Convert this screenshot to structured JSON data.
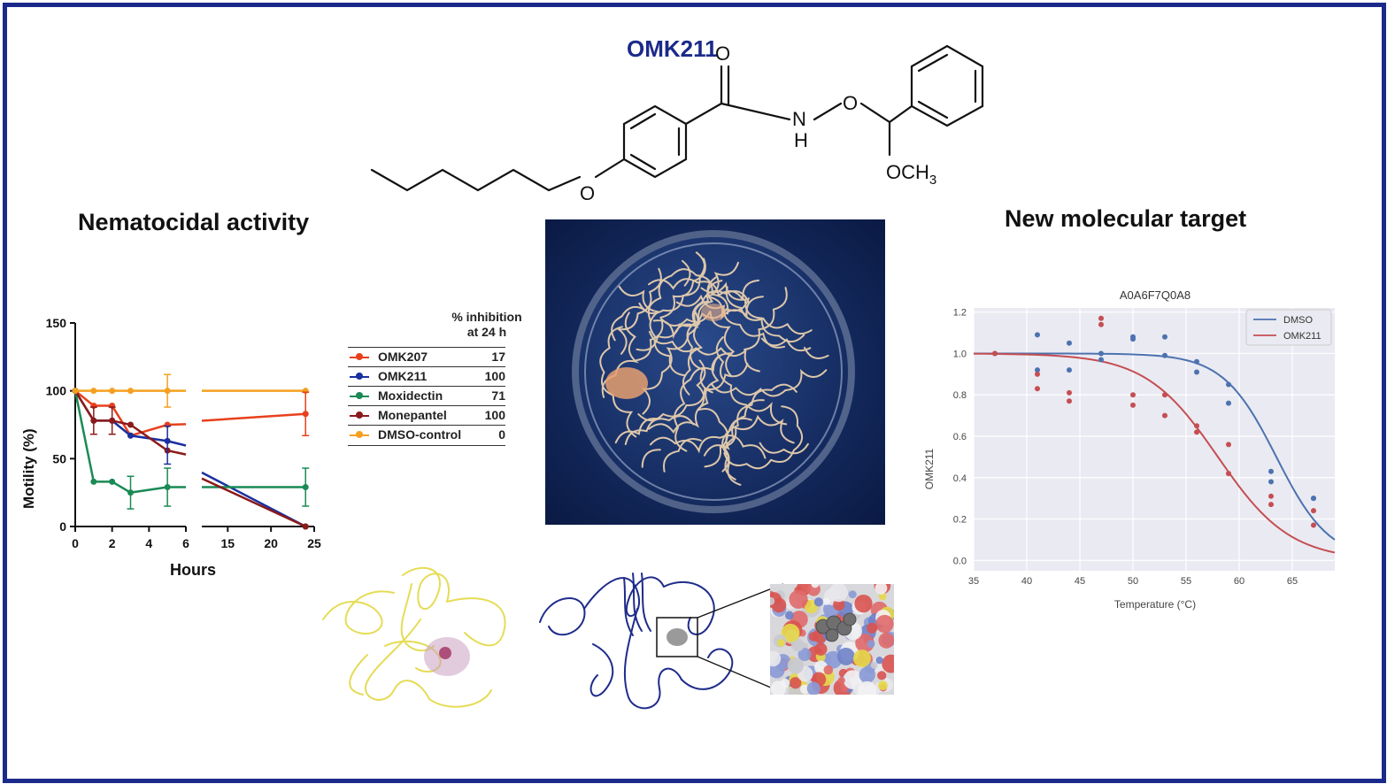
{
  "compound": {
    "name": "OMK211"
  },
  "structure": {
    "atoms": {
      "o_carbonyl": "O",
      "n": "N",
      "h": "H",
      "o_ether1": "O",
      "o_ether2": "O",
      "och3": "OCH3"
    }
  },
  "section_titles": {
    "left": "Nematocidal activity",
    "right": "New molecular target"
  },
  "motility_chart": {
    "ylabel": "Motility (%)",
    "xlabel": "Hours",
    "y_ticks": [
      "0",
      "50",
      "100",
      "150"
    ],
    "x_ticks_left": [
      "0",
      "2",
      "4",
      "6"
    ],
    "x_ticks_right": [
      "15",
      "20",
      "25"
    ]
  },
  "inhibition_table": {
    "header_line1": "% inhibition",
    "header_line2": "at 24 h",
    "rows": [
      {
        "name": "OMK207",
        "value": "17",
        "color": "#e8401c"
      },
      {
        "name": "OMK211",
        "value": "100",
        "color": "#1a2fa0"
      },
      {
        "name": "Moxidectin",
        "value": "71",
        "color": "#1a8a55"
      },
      {
        "name": "Monepantel",
        "value": "100",
        "color": "#8b1a1a"
      },
      {
        "name": "DMSO-control",
        "value": "0",
        "color": "#f5a020"
      }
    ]
  },
  "chart_data": [
    {
      "type": "line",
      "xlabel": "Hours",
      "ylabel": "Motility (%)",
      "ylim": [
        0,
        150
      ],
      "x_segments": [
        [
          0,
          6
        ],
        [
          12,
          25
        ]
      ],
      "series": [
        {
          "name": "OMK207",
          "color": "#e8401c",
          "points": [
            [
              0,
              100
            ],
            [
              1,
              89
            ],
            [
              2,
              89
            ],
            [
              3,
              67
            ],
            [
              5,
              75
            ],
            [
              24,
              83
            ]
          ]
        },
        {
          "name": "OMK211",
          "color": "#1a2fa0",
          "points": [
            [
              0,
              100
            ],
            [
              1,
              78
            ],
            [
              2,
              78
            ],
            [
              3,
              67
            ],
            [
              5,
              63
            ],
            [
              24,
              0
            ]
          ]
        },
        {
          "name": "Moxidectin",
          "color": "#1a8a55",
          "points": [
            [
              0,
              100
            ],
            [
              1,
              33
            ],
            [
              2,
              33
            ],
            [
              3,
              25
            ],
            [
              5,
              29
            ],
            [
              24,
              29
            ]
          ]
        },
        {
          "name": "Monepantel",
          "color": "#8b1a1a",
          "points": [
            [
              0,
              100
            ],
            [
              1,
              78
            ],
            [
              2,
              78
            ],
            [
              3,
              75
            ],
            [
              5,
              56
            ],
            [
              24,
              0
            ]
          ]
        },
        {
          "name": "DMSO-control",
          "color": "#f5a020",
          "points": [
            [
              0,
              100
            ],
            [
              1,
              100
            ],
            [
              2,
              100
            ],
            [
              3,
              100
            ],
            [
              5,
              100
            ],
            [
              24,
              100
            ]
          ]
        }
      ]
    },
    {
      "type": "scatter",
      "title": "A0A6F7Q0A8",
      "xlabel": "Temperature (°C)",
      "ylabel": "OMK211",
      "xlim": [
        35,
        69
      ],
      "ylim": [
        -0.05,
        1.22
      ],
      "x_ticks": [
        "35",
        "40",
        "45",
        "50",
        "55",
        "60",
        "65"
      ],
      "y_ticks": [
        "0.0",
        "0.2",
        "0.4",
        "0.6",
        "0.8",
        "1.0",
        "1.2"
      ],
      "legend_position": "top-right",
      "series": [
        {
          "name": "DMSO",
          "color": "#4c72b0",
          "fit": {
            "Tm": 63.5,
            "slope": 2.5
          },
          "points": [
            [
              37,
              1.0
            ],
            [
              41,
              1.09
            ],
            [
              41,
              0.92
            ],
            [
              44,
              1.05
            ],
            [
              44,
              0.92
            ],
            [
              47,
              1.0
            ],
            [
              47,
              0.97
            ],
            [
              50,
              1.08
            ],
            [
              50,
              1.07
            ],
            [
              53,
              1.08
            ],
            [
              53,
              0.99
            ],
            [
              56,
              0.96
            ],
            [
              56,
              0.91
            ],
            [
              59,
              0.85
            ],
            [
              59,
              0.76
            ],
            [
              63,
              0.43
            ],
            [
              63,
              0.38
            ],
            [
              67,
              0.3
            ],
            [
              67,
              0.3
            ]
          ]
        },
        {
          "name": "OMK211",
          "color": "#c44e52",
          "fit": {
            "Tm": 58.0,
            "slope": 3.4
          },
          "points": [
            [
              37,
              1.0
            ],
            [
              41,
              0.9
            ],
            [
              41,
              0.83
            ],
            [
              44,
              0.81
            ],
            [
              44,
              0.77
            ],
            [
              47,
              1.17
            ],
            [
              47,
              1.14
            ],
            [
              50,
              0.8
            ],
            [
              50,
              0.75
            ],
            [
              53,
              0.8
            ],
            [
              53,
              0.7
            ],
            [
              56,
              0.65
            ],
            [
              56,
              0.62
            ],
            [
              59,
              0.56
            ],
            [
              59,
              0.42
            ],
            [
              63,
              0.31
            ],
            [
              63,
              0.27
            ],
            [
              67,
              0.24
            ],
            [
              67,
              0.17
            ]
          ]
        }
      ]
    }
  ]
}
